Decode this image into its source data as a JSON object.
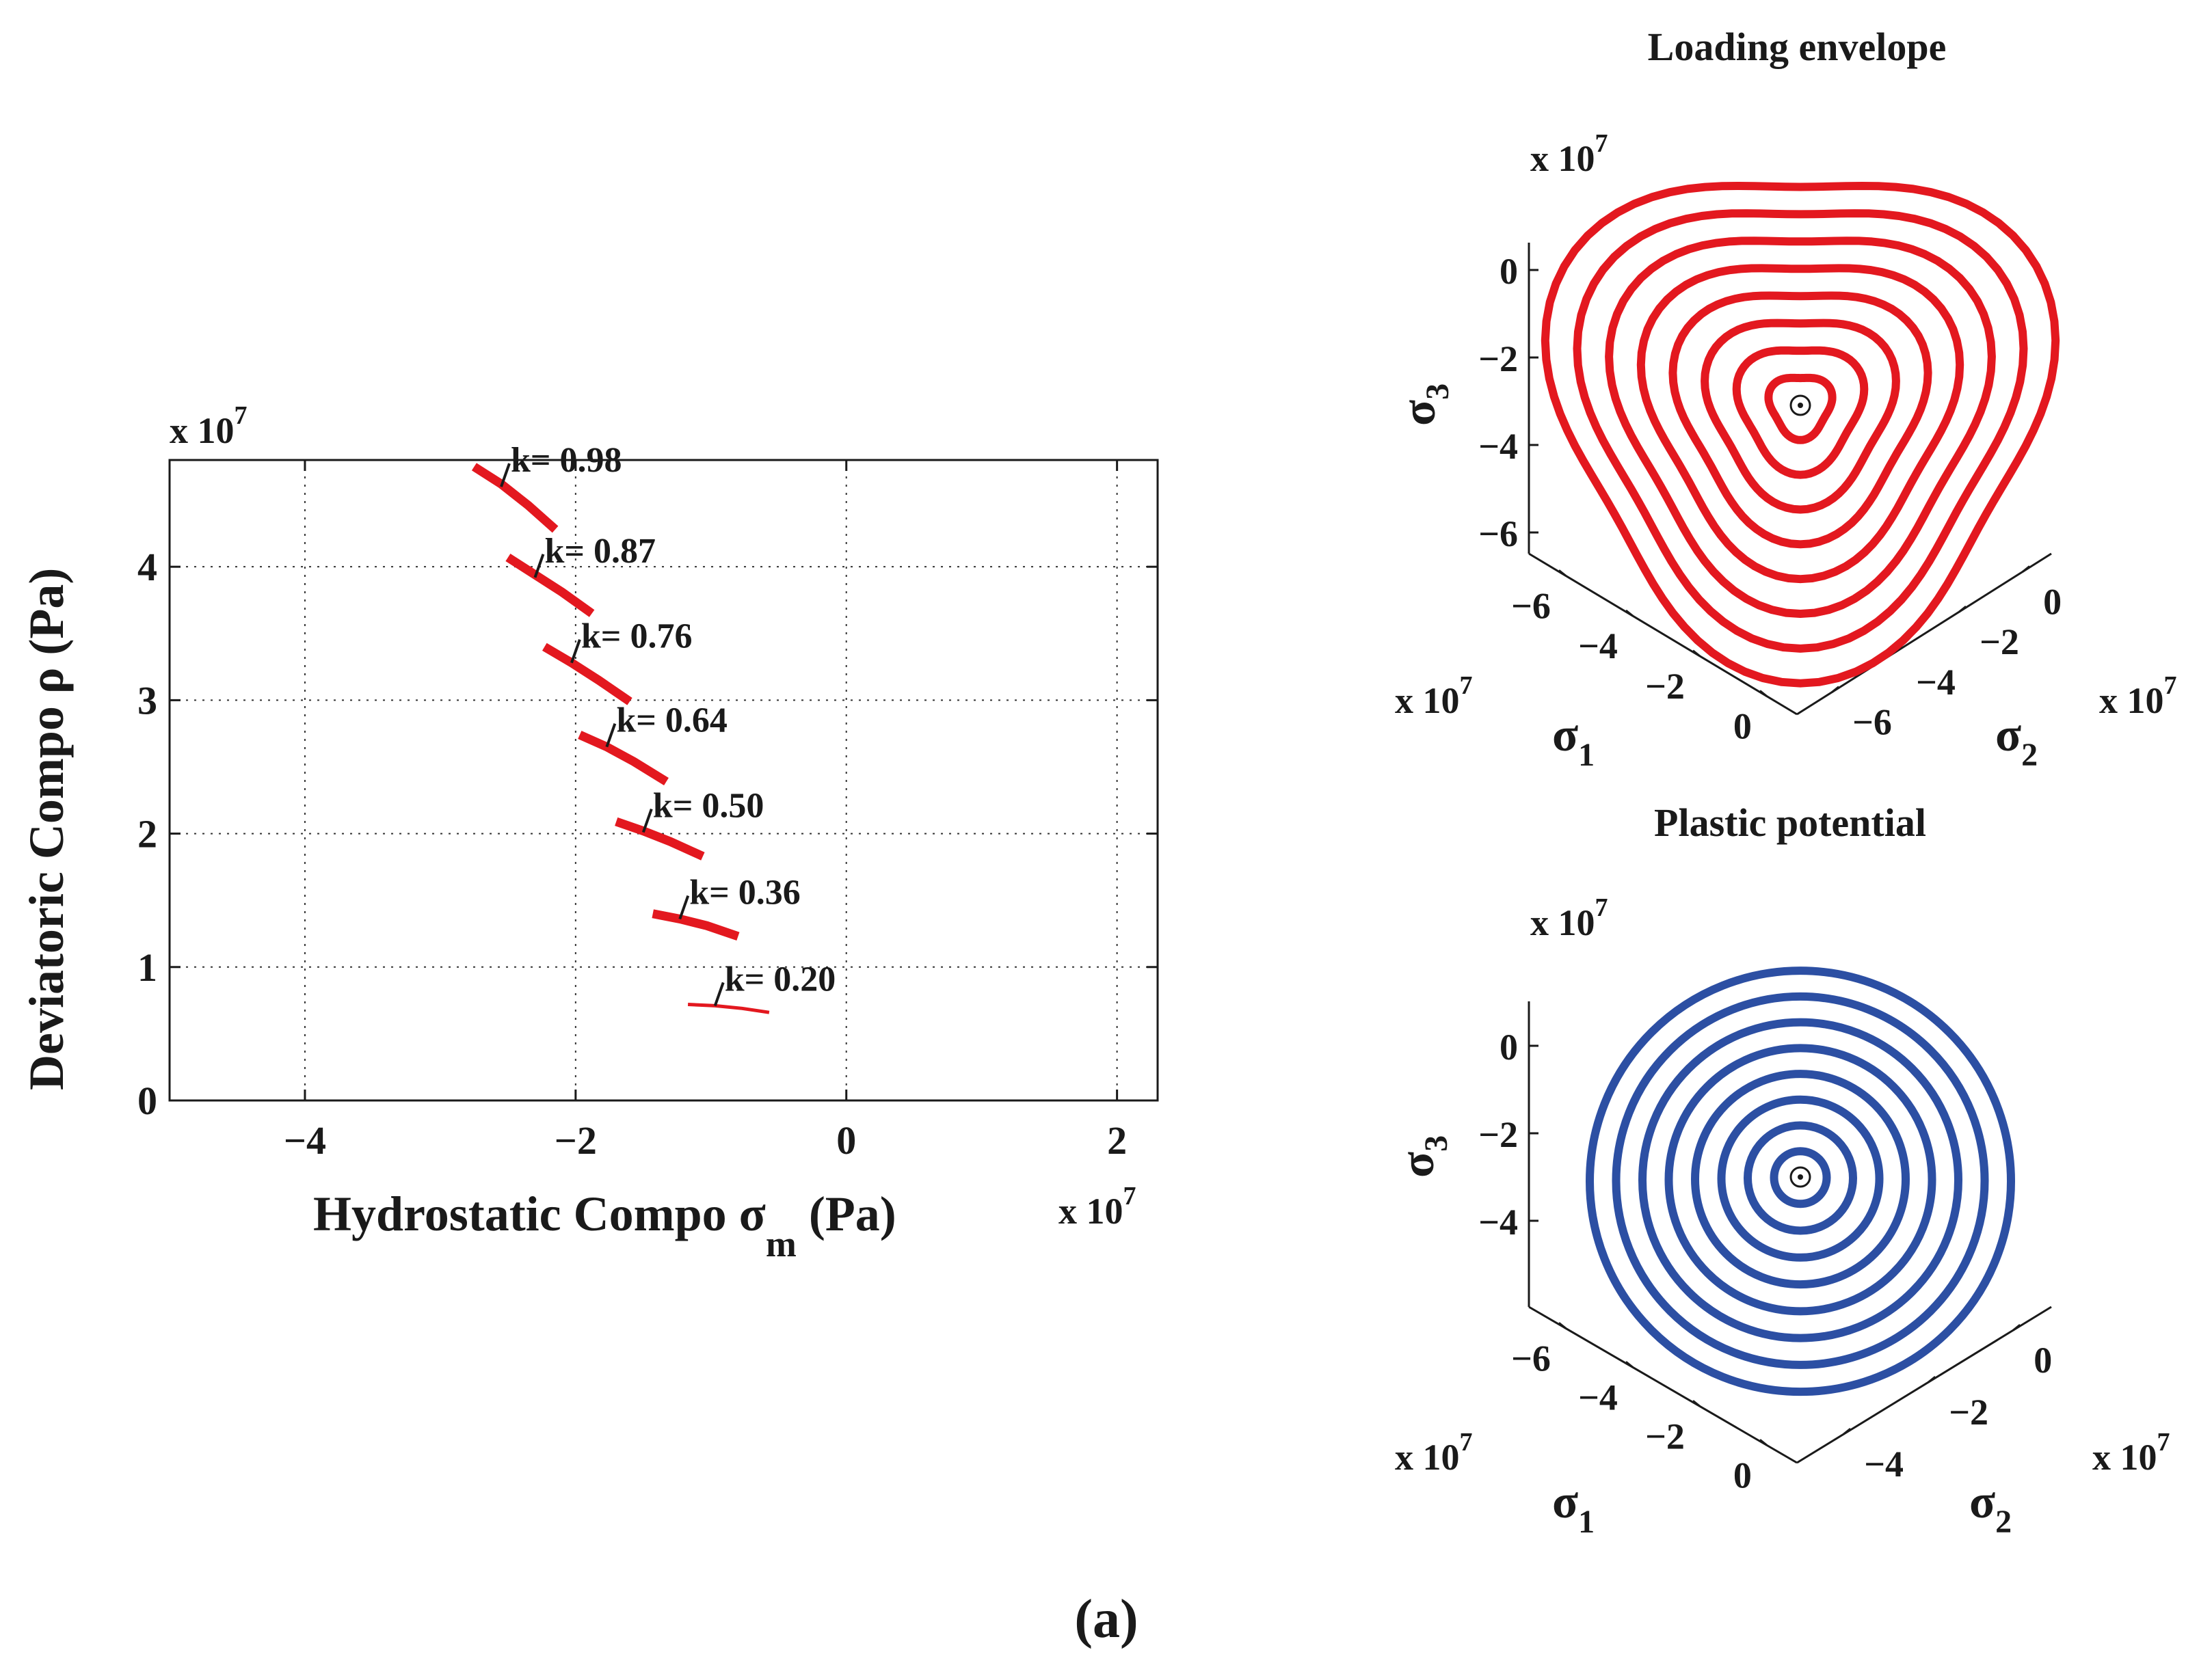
{
  "figure_label": "(a)",
  "colors": {
    "red": "#e3181f",
    "blue": "#2c4fa3",
    "axis": "#1a1a1a",
    "grid": "#333333"
  },
  "chart_data": [
    {
      "id": "meridian",
      "type": "line",
      "title": "",
      "xlabel": "Hydrostatic Compo σ",
      "xlabel_sub": "m",
      "xlabel_unit": "(Pa)",
      "ylabel": "Deviatoric  Compo ρ (Pa)",
      "x_exponent": "x 10",
      "y_exponent": "x 10",
      "exp_power": "7",
      "xlim": [
        -5,
        2.3
      ],
      "ylim": [
        0,
        4.8
      ],
      "xticks": [
        -4,
        -2,
        0,
        2
      ],
      "xtick_labels": [
        "−4",
        "−2",
        "0",
        "2"
      ],
      "yticks": [
        0,
        1,
        2,
        3,
        4
      ],
      "ytick_labels": [
        "0",
        "1",
        "2",
        "3",
        "4"
      ],
      "grid": true,
      "series": [
        {
          "name": "k= 0.98",
          "label": "k= 0.98",
          "x": [
            -2.75,
            -2.55,
            -2.35,
            -2.15
          ],
          "y": [
            4.75,
            4.62,
            4.46,
            4.28
          ],
          "marker": [
            -2.55,
            4.6
          ]
        },
        {
          "name": "k= 0.87",
          "label": "k= 0.87",
          "x": [
            -2.5,
            -2.3,
            -2.1,
            -1.88
          ],
          "y": [
            4.07,
            3.94,
            3.81,
            3.65
          ],
          "marker": [
            -2.3,
            3.92
          ]
        },
        {
          "name": "k= 0.76",
          "label": "k= 0.76",
          "x": [
            -2.23,
            -2.03,
            -1.83,
            -1.6
          ],
          "y": [
            3.4,
            3.28,
            3.15,
            2.99
          ],
          "marker": [
            -2.03,
            3.28
          ]
        },
        {
          "name": "k= 0.64",
          "label": "k= 0.64",
          "x": [
            -1.97,
            -1.77,
            -1.57,
            -1.33
          ],
          "y": [
            2.74,
            2.65,
            2.54,
            2.39
          ],
          "marker": [
            -1.77,
            2.65
          ]
        },
        {
          "name": "k= 0.50",
          "label": "k= 0.50",
          "x": [
            -1.7,
            -1.5,
            -1.3,
            -1.06
          ],
          "y": [
            2.09,
            2.02,
            1.94,
            1.83
          ],
          "marker": [
            -1.5,
            2.01
          ]
        },
        {
          "name": "k= 0.36",
          "label": "k= 0.36",
          "x": [
            -1.43,
            -1.23,
            -1.03,
            -0.8
          ],
          "y": [
            1.4,
            1.36,
            1.31,
            1.23
          ],
          "marker": [
            -1.23,
            1.36
          ]
        },
        {
          "name": "k= 0.20",
          "label": "k= 0.20",
          "x": [
            -1.17,
            -0.97,
            -0.77,
            -0.57
          ],
          "y": [
            0.72,
            0.71,
            0.69,
            0.66
          ],
          "marker": [
            -0.97,
            0.71
          ]
        }
      ]
    },
    {
      "id": "loading-envelope",
      "type": "line",
      "title": "Loading envelope",
      "exp_label": "x 10",
      "exp_power": "7",
      "z_label": "σ",
      "z_sub": "3",
      "x_label": "σ",
      "x_sub": "1",
      "y_label": "σ",
      "y_sub": "2",
      "z_ticks": [
        "0",
        "−2",
        "−4",
        "−6"
      ],
      "x_ticks": [
        "−6",
        "−4",
        "−2",
        "0"
      ],
      "y_ticks": [
        "−6",
        "−4",
        "−2",
        "0"
      ],
      "x_exp": "x 10",
      "y_exp": "x 10",
      "shape": "triangular-rounded",
      "contour_count": 8,
      "contour_radii": [
        0.5,
        1.0,
        1.5,
        2.0,
        2.5,
        3.0,
        3.5,
        4.0
      ]
    },
    {
      "id": "plastic-potential",
      "type": "line",
      "title": "Plastic potential",
      "exp_label": "x 10",
      "exp_power": "7",
      "z_label": "σ",
      "z_sub": "3",
      "x_label": "σ",
      "x_sub": "1",
      "y_label": "σ",
      "y_sub": "2",
      "z_ticks": [
        "0",
        "−2",
        "−4"
      ],
      "x_ticks": [
        "−6",
        "−4",
        "−2",
        "0"
      ],
      "y_ticks": [
        "−4",
        "−2",
        "0"
      ],
      "x_exp": "x 10",
      "y_exp": "x 10",
      "shape": "circular",
      "contour_count": 8,
      "contour_radii": [
        0.5,
        1.0,
        1.5,
        2.0,
        2.5,
        3.0,
        3.5,
        4.0
      ]
    }
  ]
}
